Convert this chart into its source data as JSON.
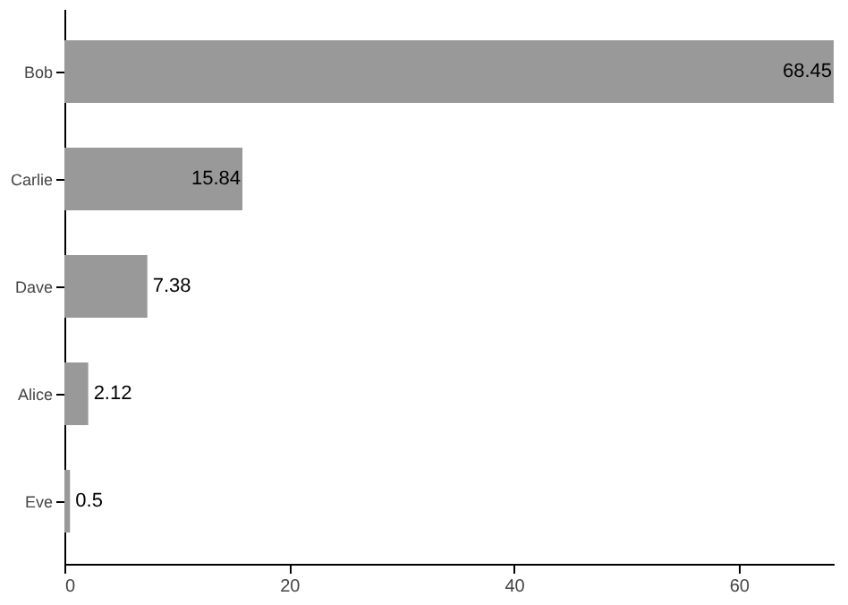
{
  "chart_data": {
    "type": "bar",
    "orientation": "horizontal",
    "categories": [
      "Bob",
      "Carlie",
      "Dave",
      "Alice",
      "Eve"
    ],
    "values": [
      68.45,
      15.84,
      7.38,
      2.12,
      0.5
    ],
    "color": "#999999",
    "data_labels": true,
    "xlim": [
      0,
      68.45
    ],
    "xticks": [
      0,
      20,
      40,
      60
    ],
    "grid": false
  }
}
